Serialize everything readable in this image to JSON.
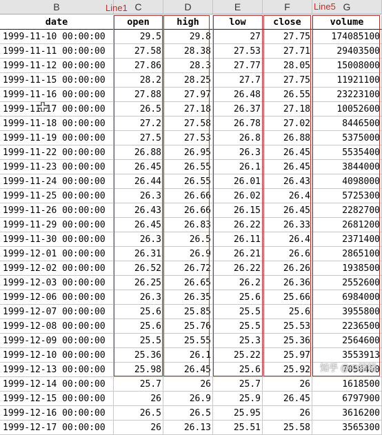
{
  "column_letters": [
    "B",
    "C",
    "D",
    "E",
    "F",
    "G"
  ],
  "annotations": {
    "line1_label": "Line1",
    "line5_label": "Line5"
  },
  "header": [
    "date",
    "open",
    "high",
    "low",
    "close",
    "volume"
  ],
  "rows": [
    [
      "1999-11-10 00:00:00",
      "29.5",
      "29.8",
      "27",
      "27.75",
      "174085100"
    ],
    [
      "1999-11-11 00:00:00",
      "27.58",
      "28.38",
      "27.53",
      "27.71",
      "29403500"
    ],
    [
      "1999-11-12 00:00:00",
      "27.86",
      "28.3",
      "27.77",
      "28.05",
      "15008000"
    ],
    [
      "1999-11-15 00:00:00",
      "28.2",
      "28.25",
      "27.7",
      "27.75",
      "11921100"
    ],
    [
      "1999-11-16 00:00:00",
      "27.88",
      "27.97",
      "26.48",
      "26.55",
      "23223100"
    ],
    [
      "1999-11-17 00:00:00",
      "26.5",
      "27.18",
      "26.37",
      "27.18",
      "10052600"
    ],
    [
      "1999-11-18 00:00:00",
      "27.2",
      "27.58",
      "26.78",
      "27.02",
      "8446500"
    ],
    [
      "1999-11-19 00:00:00",
      "27.5",
      "27.53",
      "26.8",
      "26.88",
      "5375000"
    ],
    [
      "1999-11-22 00:00:00",
      "26.88",
      "26.95",
      "26.3",
      "26.45",
      "5535400"
    ],
    [
      "1999-11-23 00:00:00",
      "26.45",
      "26.55",
      "26.1",
      "26.45",
      "3844000"
    ],
    [
      "1999-11-24 00:00:00",
      "26.44",
      "26.55",
      "26.01",
      "26.43",
      "4098000"
    ],
    [
      "1999-11-25 00:00:00",
      "26.3",
      "26.66",
      "26.02",
      "26.4",
      "5725300"
    ],
    [
      "1999-11-26 00:00:00",
      "26.43",
      "26.66",
      "26.15",
      "26.45",
      "2282700"
    ],
    [
      "1999-11-29 00:00:00",
      "26.45",
      "26.83",
      "26.22",
      "26.33",
      "2681200"
    ],
    [
      "1999-11-30 00:00:00",
      "26.3",
      "26.5",
      "26.11",
      "26.4",
      "2371400"
    ],
    [
      "1999-12-01 00:00:00",
      "26.31",
      "26.9",
      "26.21",
      "26.6",
      "2865100"
    ],
    [
      "1999-12-02 00:00:00",
      "26.52",
      "26.72",
      "26.22",
      "26.26",
      "1938500"
    ],
    [
      "1999-12-03 00:00:00",
      "26.25",
      "26.65",
      "26.2",
      "26.36",
      "2552600"
    ],
    [
      "1999-12-06 00:00:00",
      "26.3",
      "26.35",
      "25.6",
      "25.66",
      "6984000"
    ],
    [
      "1999-12-07 00:00:00",
      "25.6",
      "25.85",
      "25.5",
      "25.6",
      "3955800"
    ],
    [
      "1999-12-08 00:00:00",
      "25.6",
      "25.76",
      "25.5",
      "25.53",
      "2236500"
    ],
    [
      "1999-12-09 00:00:00",
      "25.5",
      "25.55",
      "25.3",
      "25.36",
      "2564600"
    ],
    [
      "1999-12-10 00:00:00",
      "25.36",
      "26.1",
      "25.22",
      "25.97",
      "3553913"
    ],
    [
      "1999-12-13 00:00:00",
      "25.98",
      "26.45",
      "25.6",
      "25.92",
      "7058400"
    ],
    [
      "1999-12-14 00:00:00",
      "25.7",
      "26",
      "25.7",
      "26",
      "1618500"
    ],
    [
      "1999-12-15 00:00:00",
      "26",
      "26.9",
      "25.9",
      "26.45",
      "6797900"
    ],
    [
      "1999-12-16 00:00:00",
      "26.5",
      "26.5",
      "25.95",
      "26",
      "3616200"
    ],
    [
      "1999-12-17 00:00:00",
      "26",
      "26.13",
      "25.51",
      "25.58",
      "3565300"
    ]
  ],
  "watermark": "知乎 @iO猪猪"
}
